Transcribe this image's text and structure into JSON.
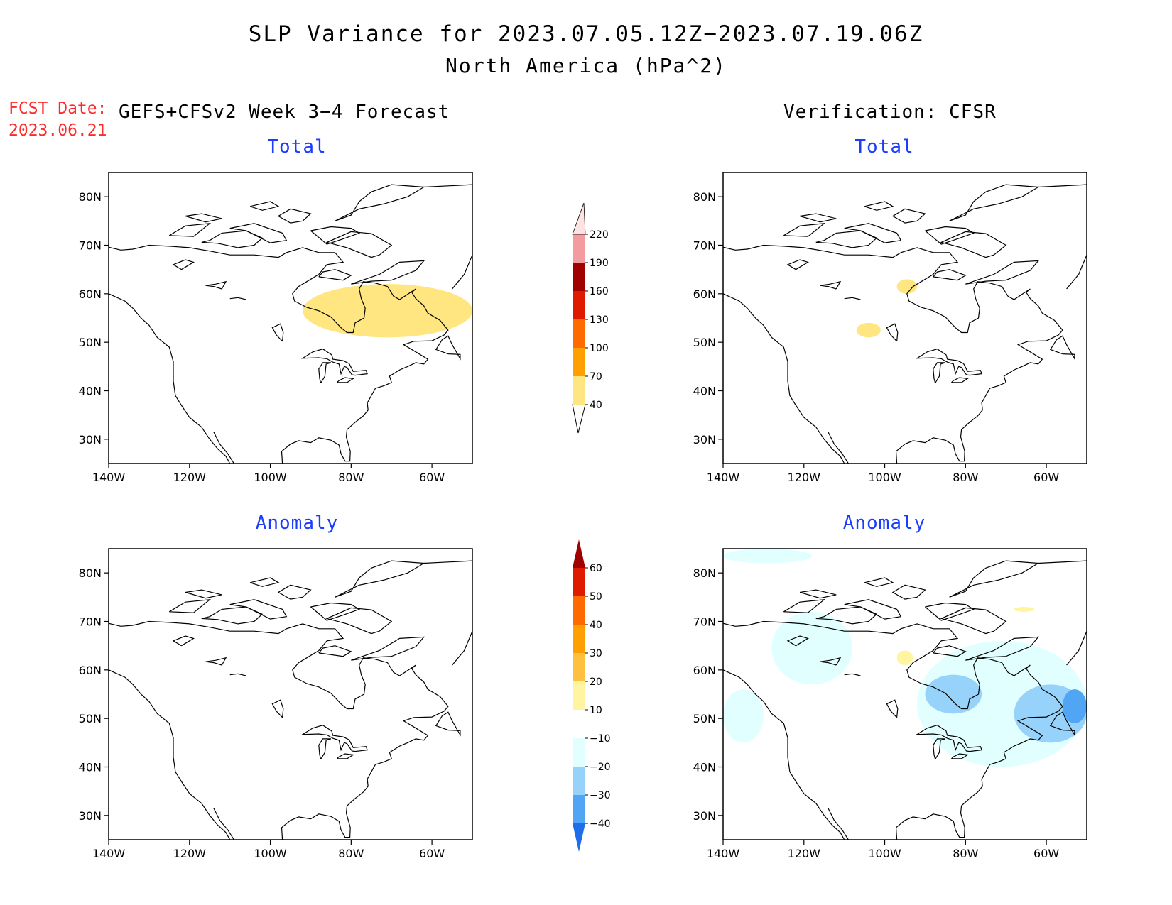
{
  "header": {
    "title": "SLP Variance for 2023.07.05.12Z−2023.07.19.06Z",
    "subtitle": "North America (hPa^2)",
    "fcst_date_label": "FCST Date:",
    "fcst_date_value": "2023.06.21",
    "model_label": "GEFS+CFSv2 Week 3−4 Forecast",
    "verification_label": "Verification: CFSR"
  },
  "panels": {
    "forecast_total": {
      "title": "Total"
    },
    "verification_total": {
      "title": "Total"
    },
    "forecast_anomaly": {
      "title": "Anomaly"
    },
    "verification_anomaly": {
      "title": "Anomaly"
    }
  },
  "axes": {
    "lon_ticks": [
      "140W",
      "120W",
      "100W",
      "80W",
      "60W"
    ],
    "lat_ticks": [
      "30N",
      "40N",
      "50N",
      "60N",
      "70N",
      "80N"
    ],
    "lon_range": [
      -140,
      -50
    ],
    "lat_range": [
      25,
      85
    ]
  },
  "colorbars": {
    "total": {
      "levels": [
        "40",
        "70",
        "100",
        "130",
        "160",
        "190",
        "220"
      ],
      "colors": [
        "#ffe680",
        "#ffa000",
        "#ff6a00",
        "#e01a00",
        "#a00000",
        "#f29ca0",
        "#fde2e2"
      ]
    },
    "anomaly": {
      "levels": [
        "60",
        "50",
        "40",
        "30",
        "20",
        "10",
        "−10",
        "−20",
        "−30",
        "−40"
      ],
      "colors": [
        "#a00000",
        "#e01a00",
        "#ff6a00",
        "#ffa000",
        "#ffc040",
        "#fff5a0",
        "#ffffff",
        "#e1ffff",
        "#96d2fa",
        "#50a5f5",
        "#1e6eeb"
      ]
    }
  },
  "chart_data": [
    {
      "type": "heatmap",
      "panel": "forecast_total",
      "units": "hPa^2",
      "shaded_regions": [
        {
          "level": "40-70",
          "color": "#ffe680",
          "lon_range": [
            -92,
            -50
          ],
          "lat_range": [
            51,
            62
          ]
        }
      ]
    },
    {
      "type": "heatmap",
      "panel": "verification_total",
      "units": "hPa^2",
      "shaded_regions": [
        {
          "level": "40-70",
          "color": "#ffe680",
          "lon_range": [
            -97,
            -92
          ],
          "lat_range": [
            60,
            63
          ]
        },
        {
          "level": "40-70",
          "color": "#ffe680",
          "lon_range": [
            -107,
            -101
          ],
          "lat_range": [
            51,
            54
          ]
        }
      ]
    },
    {
      "type": "heatmap",
      "panel": "forecast_anomaly",
      "units": "hPa^2",
      "shaded_regions": []
    },
    {
      "type": "heatmap",
      "panel": "verification_anomaly",
      "units": "hPa^2",
      "shaded_regions": [
        {
          "level": "-10 to -20",
          "color": "#e1ffff",
          "lon_range": [
            -92,
            -50
          ],
          "lat_range": [
            40,
            66
          ]
        },
        {
          "level": "-10 to -20",
          "color": "#e1ffff",
          "lon_range": [
            -140,
            -130
          ],
          "lat_range": [
            45,
            56
          ]
        },
        {
          "level": "-10 to -20",
          "color": "#e1ffff",
          "lon_range": [
            -140,
            -118
          ],
          "lat_range": [
            82,
            85
          ]
        },
        {
          "level": "-10 to -20",
          "color": "#e1ffff",
          "lon_range": [
            -128,
            -108
          ],
          "lat_range": [
            57,
            72
          ]
        },
        {
          "level": "-20 to -30",
          "color": "#96d2fa",
          "lon_range": [
            -90,
            -76
          ],
          "lat_range": [
            51,
            59
          ]
        },
        {
          "level": "-20 to -30",
          "color": "#96d2fa",
          "lon_range": [
            -68,
            -50
          ],
          "lat_range": [
            45,
            57
          ]
        },
        {
          "level": "-30 to -40",
          "color": "#50a5f5",
          "lon_range": [
            -56,
            -50
          ],
          "lat_range": [
            49,
            56
          ]
        },
        {
          "level": "10 to 20",
          "color": "#fff5a0",
          "lon_range": [
            -68,
            -63
          ],
          "lat_range": [
            72,
            73
          ]
        },
        {
          "level": "10 to 20",
          "color": "#fff5a0",
          "lon_range": [
            -97,
            -93
          ],
          "lat_range": [
            61,
            64
          ]
        }
      ]
    }
  ]
}
